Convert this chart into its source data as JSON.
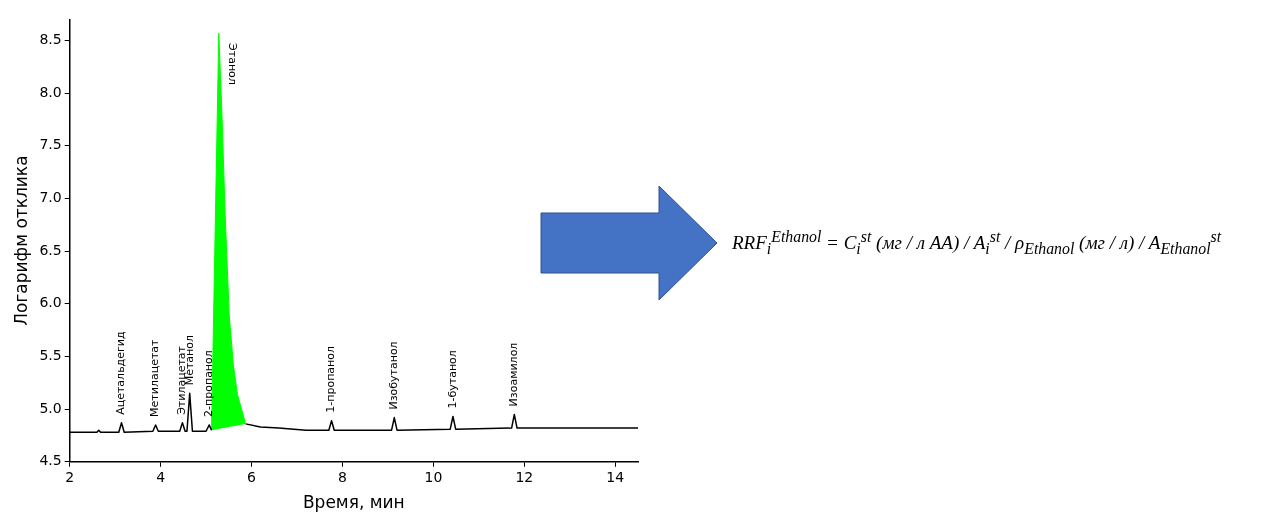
{
  "chart_data": {
    "type": "line",
    "xlabel": "Время, мин",
    "ylabel": "Логарифм отклика",
    "xlim": [
      2,
      14.5
    ],
    "xticks": [
      2,
      4,
      6,
      8,
      10,
      12,
      14
    ],
    "ylim": [
      4.5,
      8.7
    ],
    "yticks": [
      4.5,
      {
        "value": 5,
        "label": "5.0"
      },
      5.5,
      {
        "value": 6,
        "label": "6.0"
      },
      6.5,
      {
        "value": 7,
        "label": "7.0"
      },
      7.5,
      {
        "value": 8,
        "label": "8.0"
      },
      8.5
    ],
    "series": [
      {
        "color": "#000000",
        "x": [
          2,
          2.6,
          2.64,
          2.68,
          3.08,
          3.14,
          3.2,
          3.83,
          3.89,
          3.95,
          4.42,
          4.48,
          4.54,
          4.58,
          4.64,
          4.7,
          5.0,
          5.07,
          5.12
        ],
        "values": [
          4.78,
          4.78,
          4.8,
          4.78,
          4.78,
          4.87,
          4.78,
          4.79,
          4.85,
          4.79,
          4.79,
          4.87,
          4.79,
          4.79,
          5.15,
          4.79,
          4.79,
          4.85,
          4.8
        ]
      },
      {
        "type": "area",
        "color": "#00ff00",
        "x": [
          5.12,
          5.2,
          5.28,
          5.35,
          5.42,
          5.51,
          5.6,
          5.69,
          5.87
        ],
        "values": [
          4.8,
          6.7,
          8.57,
          7.79,
          6.84,
          5.89,
          5.42,
          5.14,
          4.86
        ]
      },
      {
        "color": "#000000",
        "x": [
          5.87,
          6.2,
          6.6,
          7.2,
          7.7,
          7.76,
          7.82,
          9.08,
          9.14,
          9.2,
          10.37,
          10.43,
          10.49,
          11.72,
          11.78,
          11.84,
          14.5
        ],
        "values": [
          4.86,
          4.83,
          4.82,
          4.8,
          4.8,
          4.89,
          4.8,
          4.8,
          4.92,
          4.8,
          4.81,
          4.93,
          4.81,
          4.82,
          4.95,
          4.82,
          4.82
        ]
      }
    ],
    "annotations": [
      {
        "text": "Ацетальдегид",
        "x": 3.14,
        "y": 4.87
      },
      {
        "text": "Метилацетат",
        "x": 3.89,
        "y": 4.85
      },
      {
        "text": "Этилацетат",
        "x": 4.48,
        "y": 4.87
      },
      {
        "text": "Метанол",
        "x": 4.64,
        "y": 5.15
      },
      {
        "text": "2-пропанол",
        "x": 5.07,
        "y": 4.85
      },
      {
        "text": "Этанол",
        "x": 5.28,
        "y": 8.57
      },
      {
        "text": "1-пропанол",
        "x": 7.76,
        "y": 4.89
      },
      {
        "text": "Изобутанол",
        "x": 9.14,
        "y": 4.92
      },
      {
        "text": "1-бутанол",
        "x": 10.43,
        "y": 4.93
      },
      {
        "text": "Изоамилол",
        "x": 11.78,
        "y": 4.95
      },
      "RRF$_{i}$$^{Ethanol}$ = C$_{i}$$^{st}$ (мг / л AA) / A$_{i}$$^{st}$ / ρ$_{Ethanol}$ (мг / л) / A$_{Ethanol}$$^{st}$"
    ]
  }
}
